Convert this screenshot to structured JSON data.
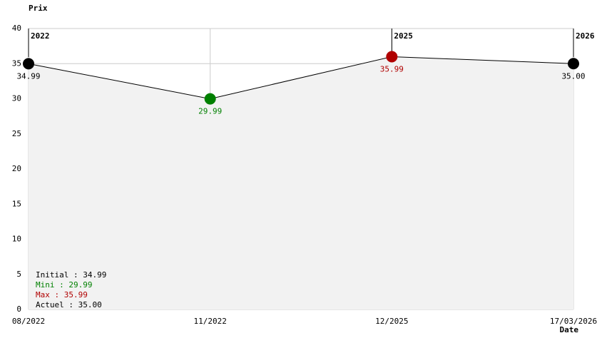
{
  "chart_data": {
    "type": "line",
    "y_label": "Prix",
    "x_label": "Date",
    "categories": [
      "08/2022",
      "11/2022",
      "12/2025",
      "17/03/2026"
    ],
    "year_labels": [
      "2022",
      null,
      "2025",
      "2026"
    ],
    "values": [
      34.99,
      29.99,
      35.99,
      35
    ],
    "value_labels": [
      "34.99",
      "29.99",
      "35.99",
      "35.00"
    ],
    "point_colors": [
      "#000000",
      "#008000",
      "#b00000",
      "#000000"
    ],
    "line_color": "#000000",
    "fill_color": "#f2f2f2",
    "ylim": [
      0,
      40
    ],
    "yticks": [
      0,
      5,
      10,
      15,
      20,
      25,
      30,
      35,
      40
    ],
    "grid": true,
    "summary": [
      {
        "text": "Initial : 34.99",
        "color": "#000000"
      },
      {
        "text": "Mini : 29.99",
        "color": "#008000"
      },
      {
        "text": "Max : 35.99",
        "color": "#b00000"
      },
      {
        "text": "Actuel : 35.00",
        "color": "#000000"
      }
    ]
  }
}
